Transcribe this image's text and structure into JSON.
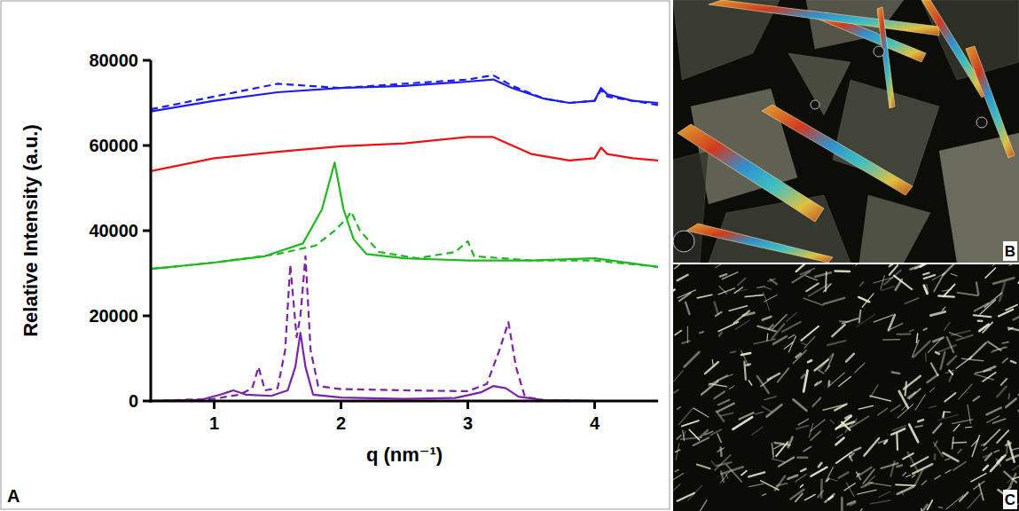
{
  "chart_data": {
    "type": "line",
    "panel_label": "A",
    "y_label": "Relative Intensity (a.u.)",
    "x_label": "q (nm⁻¹)",
    "xlim": [
      0.5,
      4.5
    ],
    "xticks": [
      1,
      2,
      3,
      4
    ],
    "ylim": [
      0,
      80000
    ],
    "yticks": [
      0,
      20000,
      40000,
      60000,
      80000
    ],
    "grid": false,
    "series": [
      {
        "color": "#1c1cf0",
        "line_style": "solid",
        "x": [
          0.5,
          1.0,
          1.5,
          2.0,
          2.5,
          3.0,
          3.2,
          3.35,
          3.6,
          3.8,
          4.0,
          4.05,
          4.1,
          4.3,
          4.5
        ],
        "values": [
          68000,
          70500,
          72500,
          73500,
          74000,
          75000,
          75500,
          73500,
          71000,
          70000,
          70500,
          73500,
          72000,
          70500,
          70000
        ]
      },
      {
        "color": "#1c1cf0",
        "line_style": "dashed",
        "x": [
          0.5,
          1.0,
          1.5,
          2.0,
          2.5,
          3.0,
          3.2,
          3.35,
          3.6,
          3.8,
          4.0,
          4.05,
          4.1,
          4.3,
          4.5
        ],
        "values": [
          68500,
          71500,
          74500,
          73500,
          74500,
          75500,
          76500,
          74000,
          71000,
          70000,
          70500,
          73000,
          71500,
          70500,
          69500
        ]
      },
      {
        "color": "#ee1111",
        "line_style": "solid",
        "x": [
          0.5,
          1.0,
          1.5,
          2.0,
          2.5,
          3.0,
          3.2,
          3.35,
          3.5,
          3.8,
          4.0,
          4.05,
          4.1,
          4.3,
          4.5
        ],
        "values": [
          54000,
          57000,
          58500,
          59800,
          60500,
          62000,
          62000,
          60000,
          58000,
          56500,
          57000,
          59500,
          58000,
          57000,
          56500
        ]
      },
      {
        "color": "#1fb81f",
        "line_style": "solid",
        "x": [
          0.5,
          1.0,
          1.4,
          1.7,
          1.85,
          1.95,
          2.02,
          2.1,
          2.2,
          2.5,
          3.0,
          3.5,
          4.0,
          4.5
        ],
        "values": [
          31000,
          32500,
          34000,
          37000,
          45000,
          56000,
          45000,
          38000,
          34500,
          33500,
          33000,
          33000,
          33500,
          31500
        ]
      },
      {
        "color": "#1fb81f",
        "line_style": "dashed",
        "x": [
          0.5,
          1.0,
          1.5,
          1.8,
          1.95,
          2.05,
          2.08,
          2.15,
          2.3,
          2.6,
          2.9,
          3.0,
          3.05,
          3.5,
          4.0,
          4.5
        ],
        "values": [
          31000,
          32500,
          34500,
          36500,
          40000,
          43000,
          44500,
          40000,
          35000,
          33500,
          35000,
          37500,
          34000,
          33000,
          33000,
          31500
        ]
      },
      {
        "color": "#7b22a8",
        "line_style": "solid",
        "x": [
          0.5,
          0.9,
          1.05,
          1.15,
          1.25,
          1.45,
          1.58,
          1.64,
          1.68,
          1.72,
          1.78,
          2.0,
          2.5,
          2.9,
          3.1,
          3.2,
          3.3,
          3.4,
          3.6,
          4.0,
          4.5
        ],
        "values": [
          0,
          300,
          1500,
          2500,
          1500,
          1200,
          2500,
          8000,
          16000,
          8000,
          1500,
          800,
          500,
          700,
          2000,
          3500,
          3000,
          1000,
          200,
          0,
          0
        ]
      },
      {
        "color": "#7b22a8",
        "line_style": "dashed",
        "x": [
          0.5,
          1.0,
          1.2,
          1.3,
          1.35,
          1.4,
          1.5,
          1.56,
          1.6,
          1.65,
          1.68,
          1.72,
          1.76,
          1.82,
          2.0,
          2.5,
          3.0,
          3.15,
          3.25,
          3.32,
          3.38,
          3.45,
          3.6,
          4.0,
          4.5
        ],
        "values": [
          0,
          500,
          1500,
          3000,
          8000,
          2500,
          3000,
          12000,
          32000,
          15000,
          20000,
          34000,
          12000,
          3500,
          2800,
          2500,
          2300,
          4000,
          12000,
          18500,
          8000,
          1000,
          200,
          0,
          0
        ]
      }
    ]
  },
  "images": [
    {
      "label": "B"
    },
    {
      "label": "C"
    }
  ]
}
